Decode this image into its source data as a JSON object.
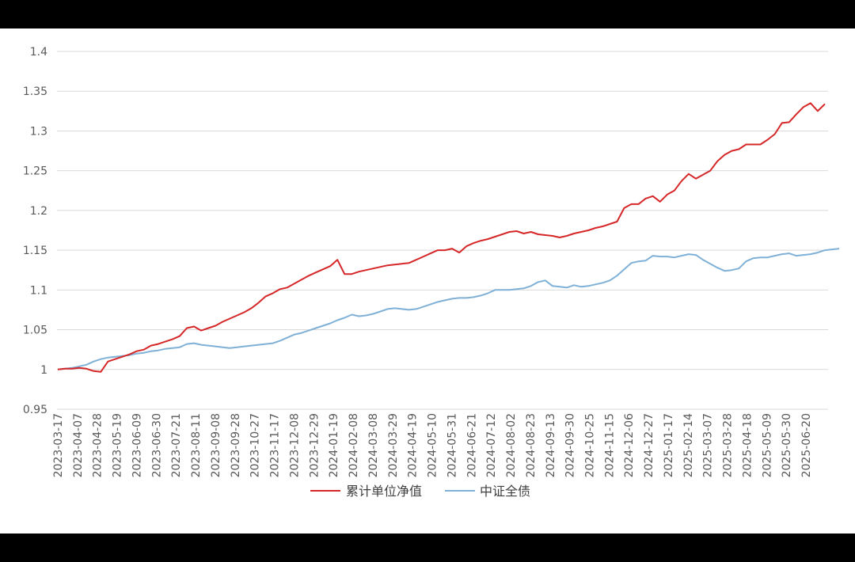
{
  "chart_data": {
    "type": "line",
    "title": "",
    "xlabel": "",
    "ylabel": "",
    "ylim": [
      0.95,
      1.4
    ],
    "yticks": [
      "0.95",
      "1",
      "1.05",
      "1.1",
      "1.15",
      "1.2",
      "1.25",
      "1.3",
      "1.35",
      "1.4"
    ],
    "xticks": [
      "2023-03-17",
      "2023-04-07",
      "2023-04-28",
      "2023-05-19",
      "2023-06-09",
      "2023-06-30",
      "2023-07-21",
      "2023-08-11",
      "2023-09-08",
      "2023-09-28",
      "2023-10-27",
      "2023-11-17",
      "2023-12-08",
      "2023-12-29",
      "2024-01-19",
      "2024-02-08",
      "2024-03-08",
      "2024-03-29",
      "2024-04-19",
      "2024-05-10",
      "2024-05-31",
      "2024-06-21",
      "2024-07-12",
      "2024-08-02",
      "2024-08-23",
      "2024-09-13",
      "2024-09-30",
      "2024-10-25",
      "2024-11-15",
      "2024-12-06",
      "2024-12-27",
      "2025-01-17",
      "2025-02-14",
      "2025-03-07",
      "2025-03-28",
      "2025-04-18",
      "2025-05-09",
      "2025-05-30",
      "2025-06-20"
    ],
    "grid": true,
    "legend": "bottom",
    "series": [
      {
        "name": "累计单位净值",
        "color": "#d62728",
        "values": [
          1.0,
          1.001,
          1.001,
          1.002,
          1.001,
          0.998,
          0.997,
          1.01,
          1.013,
          1.016,
          1.019,
          1.023,
          1.025,
          1.03,
          1.032,
          1.035,
          1.038,
          1.042,
          1.052,
          1.054,
          1.049,
          1.052,
          1.055,
          1.06,
          1.064,
          1.068,
          1.072,
          1.077,
          1.084,
          1.092,
          1.096,
          1.101,
          1.103,
          1.108,
          1.113,
          1.118,
          1.122,
          1.126,
          1.13,
          1.138,
          1.12,
          1.12,
          1.123,
          1.125,
          1.127,
          1.129,
          1.131,
          1.132,
          1.133,
          1.134,
          1.138,
          1.142,
          1.146,
          1.15,
          1.15,
          1.152,
          1.147,
          1.155,
          1.159,
          1.162,
          1.164,
          1.167,
          1.17,
          1.173,
          1.174,
          1.171,
          1.173,
          1.17,
          1.169,
          1.168,
          1.166,
          1.168,
          1.171,
          1.173,
          1.175,
          1.178,
          1.18,
          1.183,
          1.186,
          1.203,
          1.208,
          1.208,
          1.215,
          1.218,
          1.211,
          1.22,
          1.225,
          1.237,
          1.246,
          1.24,
          1.245,
          1.25,
          1.262,
          1.27,
          1.275,
          1.277,
          1.283,
          1.283,
          1.283,
          1.289,
          1.296,
          1.31,
          1.311,
          1.321,
          1.33,
          1.335,
          1.325,
          1.334
        ]
      },
      {
        "name": "中证全债",
        "color": "#7fb0d6",
        "values": [
          1.0,
          1.001,
          1.002,
          1.004,
          1.006,
          1.01,
          1.013,
          1.015,
          1.016,
          1.017,
          1.018,
          1.02,
          1.021,
          1.023,
          1.024,
          1.026,
          1.027,
          1.028,
          1.032,
          1.033,
          1.031,
          1.03,
          1.029,
          1.028,
          1.027,
          1.028,
          1.029,
          1.03,
          1.031,
          1.032,
          1.033,
          1.036,
          1.04,
          1.044,
          1.046,
          1.049,
          1.052,
          1.055,
          1.058,
          1.062,
          1.065,
          1.069,
          1.067,
          1.068,
          1.07,
          1.073,
          1.076,
          1.077,
          1.076,
          1.075,
          1.076,
          1.079,
          1.082,
          1.085,
          1.087,
          1.089,
          1.09,
          1.09,
          1.091,
          1.093,
          1.096,
          1.1,
          1.1,
          1.1,
          1.101,
          1.102,
          1.105,
          1.11,
          1.112,
          1.105,
          1.104,
          1.103,
          1.106,
          1.104,
          1.105,
          1.107,
          1.109,
          1.112,
          1.118,
          1.126,
          1.134,
          1.136,
          1.137,
          1.143,
          1.142,
          1.142,
          1.141,
          1.143,
          1.145,
          1.144,
          1.138,
          1.133,
          1.128,
          1.124,
          1.125,
          1.127,
          1.136,
          1.14,
          1.141,
          1.141,
          1.143,
          1.145,
          1.146,
          1.143,
          1.144,
          1.145,
          1.147,
          1.15,
          1.151,
          1.152
        ]
      }
    ]
  }
}
